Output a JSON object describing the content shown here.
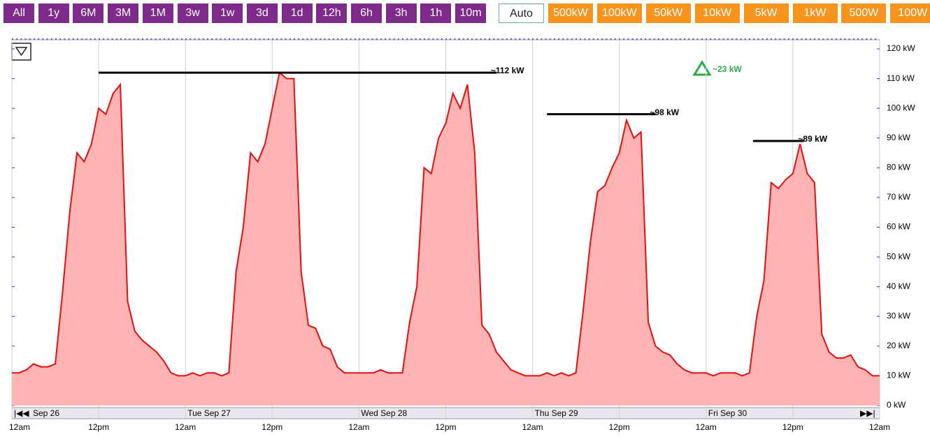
{
  "toolbar": {
    "time_buttons": [
      "All",
      "1y",
      "6M",
      "3M",
      "1M",
      "3w",
      "1w",
      "3d",
      "1d",
      "12h",
      "6h",
      "3h",
      "1h",
      "10m"
    ],
    "auto_button": "Auto",
    "scale_buttons": [
      "500kW",
      "100kW",
      "50kW",
      "10kW",
      "5kW",
      "1kW",
      "500W",
      "100W"
    ]
  },
  "chart_data": {
    "type": "area",
    "x": [
      0,
      1,
      2,
      3,
      4,
      5,
      6,
      7,
      8,
      9,
      10,
      11,
      12,
      13,
      14,
      15,
      16,
      17,
      18,
      19,
      20,
      21,
      22,
      23,
      24,
      25,
      26,
      27,
      28,
      29,
      30,
      31,
      32,
      33,
      34,
      35,
      36,
      37,
      38,
      39,
      40,
      41,
      42,
      43,
      44,
      45,
      46,
      47,
      48,
      49,
      50,
      51,
      52,
      53,
      54,
      55,
      56,
      57,
      58,
      59,
      60,
      61,
      62,
      63,
      64,
      65,
      66,
      67,
      68,
      69,
      70,
      71,
      72,
      73,
      74,
      75,
      76,
      77,
      78,
      79,
      80,
      81,
      82,
      83,
      84,
      85,
      86,
      87,
      88,
      89,
      90,
      91,
      92,
      93,
      94,
      95,
      96,
      97,
      98,
      99,
      100,
      101,
      102,
      103,
      104,
      105,
      106,
      107,
      108,
      109,
      110,
      111,
      112,
      113,
      114,
      115,
      116,
      117,
      118,
      119,
      120
    ],
    "series": [
      {
        "color": "#e01010",
        "fill": "#ffb3b3",
        "values": [
          11,
          11,
          12,
          14,
          13,
          13,
          14,
          38,
          65,
          85,
          82,
          88,
          100,
          98,
          105,
          108,
          35,
          25,
          22,
          20,
          18,
          15,
          11,
          10,
          10,
          11,
          10,
          11,
          11,
          10,
          11,
          45,
          60,
          85,
          82,
          88,
          100,
          112,
          110,
          110,
          45,
          27,
          26,
          20,
          19,
          13,
          11,
          11,
          11,
          11,
          11,
          12,
          11,
          11,
          11,
          28,
          40,
          80,
          78,
          90,
          95,
          105,
          100,
          108,
          85,
          27,
          24,
          18,
          15,
          12,
          11,
          10,
          10,
          10,
          11,
          10,
          11,
          10,
          11,
          32,
          55,
          72,
          74,
          80,
          85,
          96,
          90,
          92,
          28,
          20,
          18,
          17,
          14,
          12,
          11,
          11,
          11,
          10,
          11,
          11,
          11,
          10,
          11,
          30,
          42,
          75,
          73,
          76,
          78,
          88,
          78,
          75,
          24,
          18,
          16,
          16,
          17,
          13,
          12,
          10,
          10
        ]
      }
    ],
    "xlim": [
      0,
      120
    ],
    "xticks": [
      {
        "value": 0,
        "label": "12am"
      },
      {
        "value": 12,
        "label": "12pm"
      },
      {
        "value": 24,
        "label": "12am"
      },
      {
        "value": 36,
        "label": "12pm"
      },
      {
        "value": 48,
        "label": "12am"
      },
      {
        "value": 60,
        "label": "12pm"
      },
      {
        "value": 72,
        "label": "12am"
      },
      {
        "value": 84,
        "label": "12pm"
      },
      {
        "value": 96,
        "label": "12am"
      },
      {
        "value": 108,
        "label": "12pm"
      },
      {
        "value": 120,
        "label": "12am"
      }
    ],
    "date_labels": [
      {
        "value": 0,
        "label": "Sep 26"
      },
      {
        "value": 24,
        "label": "Tue Sep 27"
      },
      {
        "value": 48,
        "label": "Wed Sep 28"
      },
      {
        "value": 72,
        "label": "Thu Sep 29"
      },
      {
        "value": 96,
        "label": "Fri Sep 30"
      }
    ],
    "ylim": [
      0,
      120
    ],
    "yticks": [
      {
        "value": 0,
        "label": "0 kW"
      },
      {
        "value": 10,
        "label": "10 kW"
      },
      {
        "value": 20,
        "label": "20 kW"
      },
      {
        "value": 30,
        "label": "30 kW"
      },
      {
        "value": 40,
        "label": "40 kW"
      },
      {
        "value": 50,
        "label": "50 kW"
      },
      {
        "value": 60,
        "label": "60 kW"
      },
      {
        "value": 70,
        "label": "70 kW"
      },
      {
        "value": 80,
        "label": "80 kW"
      },
      {
        "value": 90,
        "label": "90 kW"
      },
      {
        "value": 100,
        "label": "100 kW"
      },
      {
        "value": 110,
        "label": "110 kW"
      },
      {
        "value": 120,
        "label": "120 kW"
      }
    ],
    "grid": true,
    "annotations": [
      {
        "value": 112,
        "label": "~112 kW",
        "x_range": [
          12,
          67
        ]
      },
      {
        "value": 98,
        "label": "~98 kW",
        "x_range": [
          74,
          89
        ]
      },
      {
        "value": 89,
        "label": "~89 kW",
        "x_range": [
          102.5,
          109.5
        ]
      }
    ],
    "delta_label": "~23 kW",
    "delta_color": "#2eaa4a"
  }
}
